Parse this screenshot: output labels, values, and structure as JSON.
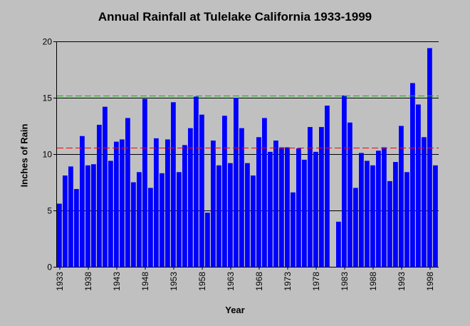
{
  "chart_data": {
    "type": "bar",
    "title": "Annual Rainfall at Tulelake California 1933-1999",
    "xlabel": "Year",
    "ylabel": "Inches of Rain",
    "ylim": [
      0,
      20
    ],
    "yticks": [
      0,
      5,
      10,
      15,
      20
    ],
    "grid": "horizontal",
    "bar_color": "#0000ff",
    "x_start": 1933,
    "x_end": 1999,
    "xticks": [
      "1933",
      "1938",
      "1943",
      "1948",
      "1953",
      "1958",
      "1963",
      "1968",
      "1973",
      "1978",
      "1983",
      "1988",
      "1993",
      "1998"
    ],
    "years": [
      1933,
      1934,
      1935,
      1936,
      1937,
      1938,
      1939,
      1940,
      1941,
      1942,
      1943,
      1944,
      1945,
      1946,
      1947,
      1948,
      1949,
      1950,
      1951,
      1952,
      1953,
      1954,
      1955,
      1956,
      1957,
      1958,
      1959,
      1960,
      1961,
      1962,
      1963,
      1964,
      1965,
      1966,
      1967,
      1968,
      1969,
      1970,
      1971,
      1972,
      1973,
      1974,
      1975,
      1976,
      1977,
      1978,
      1979,
      1980,
      1981,
      1982,
      1983,
      1984,
      1985,
      1986,
      1987,
      1988,
      1989,
      1990,
      1991,
      1992,
      1993,
      1994,
      1995,
      1996,
      1997,
      1998,
      1999
    ],
    "values": [
      5.6,
      8.1,
      8.9,
      6.9,
      11.6,
      9.0,
      9.1,
      12.6,
      14.2,
      9.4,
      11.1,
      11.3,
      13.2,
      7.5,
      8.4,
      14.9,
      7.0,
      11.4,
      8.3,
      11.3,
      14.6,
      8.4,
      10.8,
      12.3,
      15.1,
      13.5,
      4.8,
      11.2,
      9.0,
      13.4,
      9.2,
      15.0,
      12.3,
      9.2,
      8.1,
      11.5,
      13.2,
      10.2,
      11.2,
      10.6,
      10.6,
      6.6,
      10.5,
      9.5,
      12.4,
      10.2,
      12.4,
      14.3,
      0,
      4.0,
      15.2,
      12.8,
      7.0,
      10.1,
      9.4,
      9.0,
      10.3,
      10.6,
      7.6,
      9.3,
      12.5,
      8.4,
      16.3,
      14.4,
      11.5,
      19.4,
      9.0
    ],
    "reference_lines": [
      {
        "value": 10.6,
        "color": "#ff0000",
        "style": "dashed"
      },
      {
        "value": 15.2,
        "color": "#00bb00",
        "style": "dashed"
      }
    ]
  }
}
